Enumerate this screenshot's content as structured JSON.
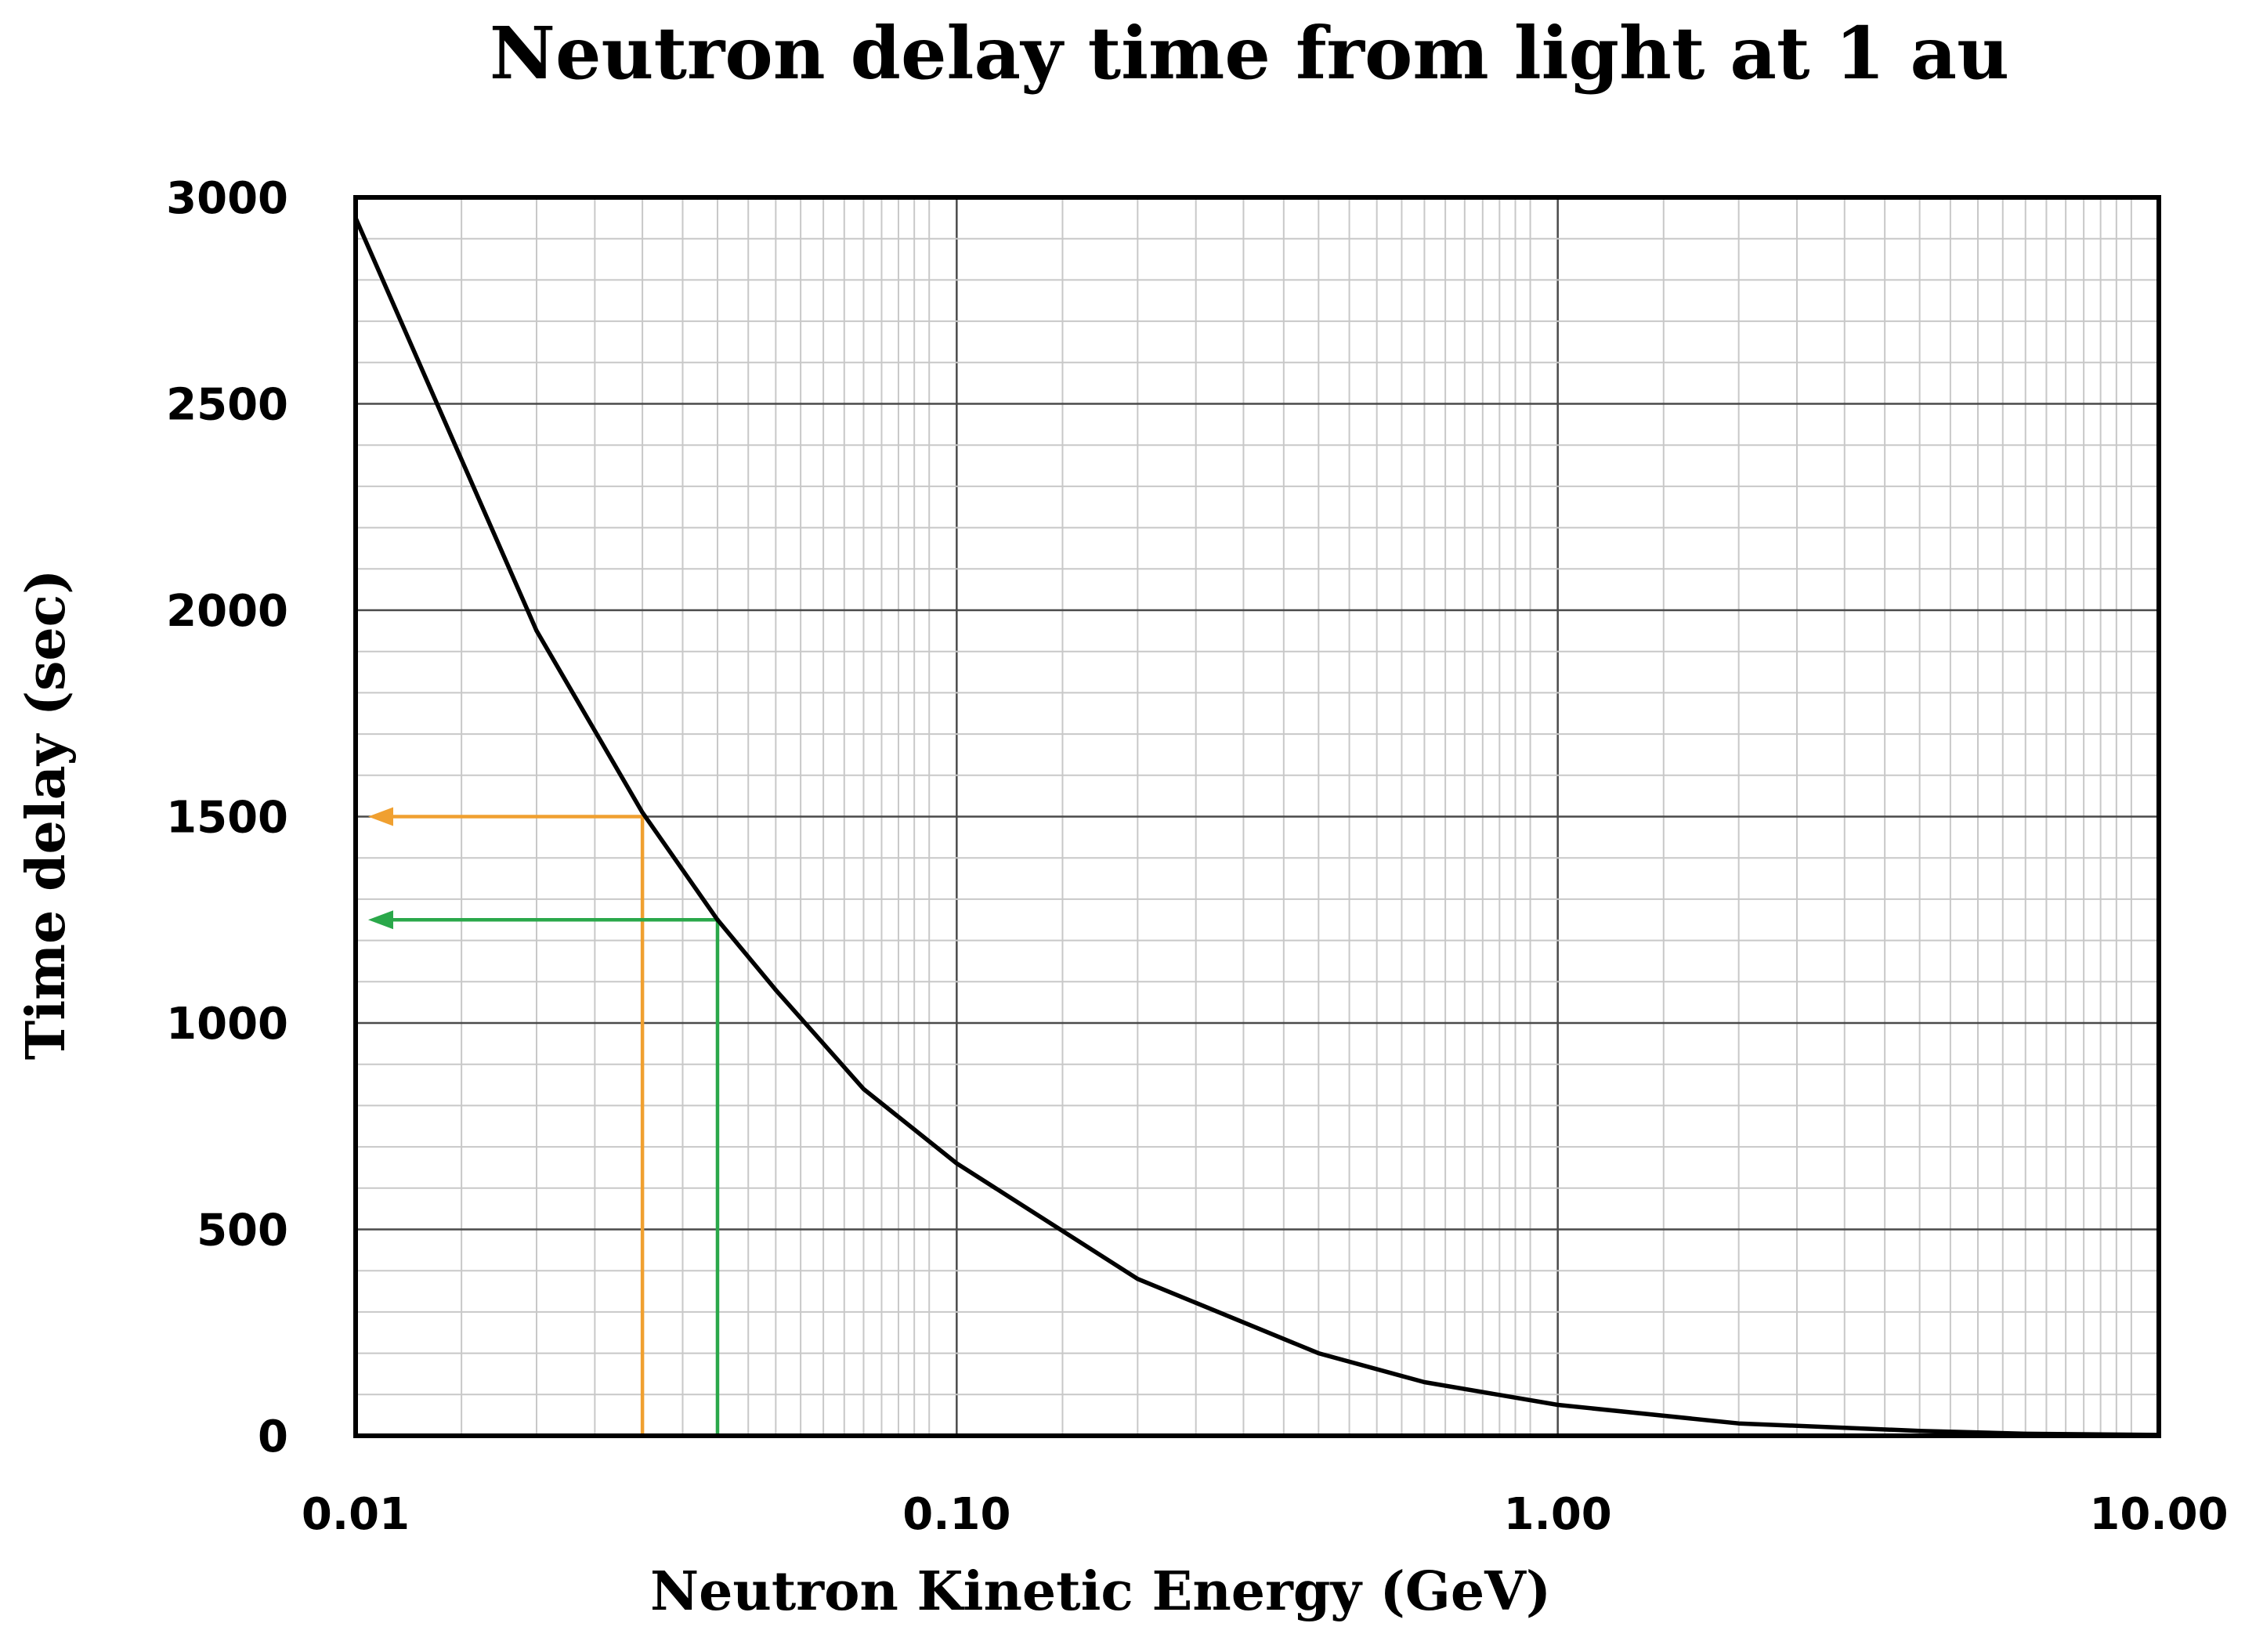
{
  "chart_data": {
    "type": "line",
    "title": "Neutron delay time from light at 1 au",
    "xlabel": "Neutron Kinetic Energy (GeV)",
    "ylabel": "Time delay (sec)",
    "x_scale": "log",
    "xlim": [
      0.01,
      10
    ],
    "ylim": [
      0,
      3000
    ],
    "x_ticks": [
      0.01,
      0.1,
      1,
      10
    ],
    "x_tick_labels": [
      "0.01",
      "0.10",
      "1.00",
      "10.00"
    ],
    "y_ticks": [
      0,
      500,
      1000,
      1500,
      2000,
      2500,
      3000
    ],
    "y_tick_labels": [
      "0",
      "500",
      "1000",
      "1500",
      "2000",
      "2500",
      "3000"
    ],
    "grid": true,
    "legend": "none",
    "series": [
      {
        "color": "#000000",
        "x": [
          0.01,
          0.02,
          0.03,
          0.04,
          0.05,
          0.07,
          0.1,
          0.2,
          0.4,
          0.6,
          1,
          2,
          4,
          6,
          10
        ],
        "y": [
          2950,
          1950,
          1510,
          1250,
          1080,
          840,
          660,
          380,
          200,
          130,
          75,
          30,
          12,
          5,
          2
        ]
      }
    ],
    "annotations": [
      {
        "type": "arrow",
        "color": "#f0a030",
        "x": 0.03,
        "y": 1500
      },
      {
        "type": "arrow",
        "color": "#2aa84a",
        "x": 0.04,
        "y": 1250
      }
    ]
  }
}
